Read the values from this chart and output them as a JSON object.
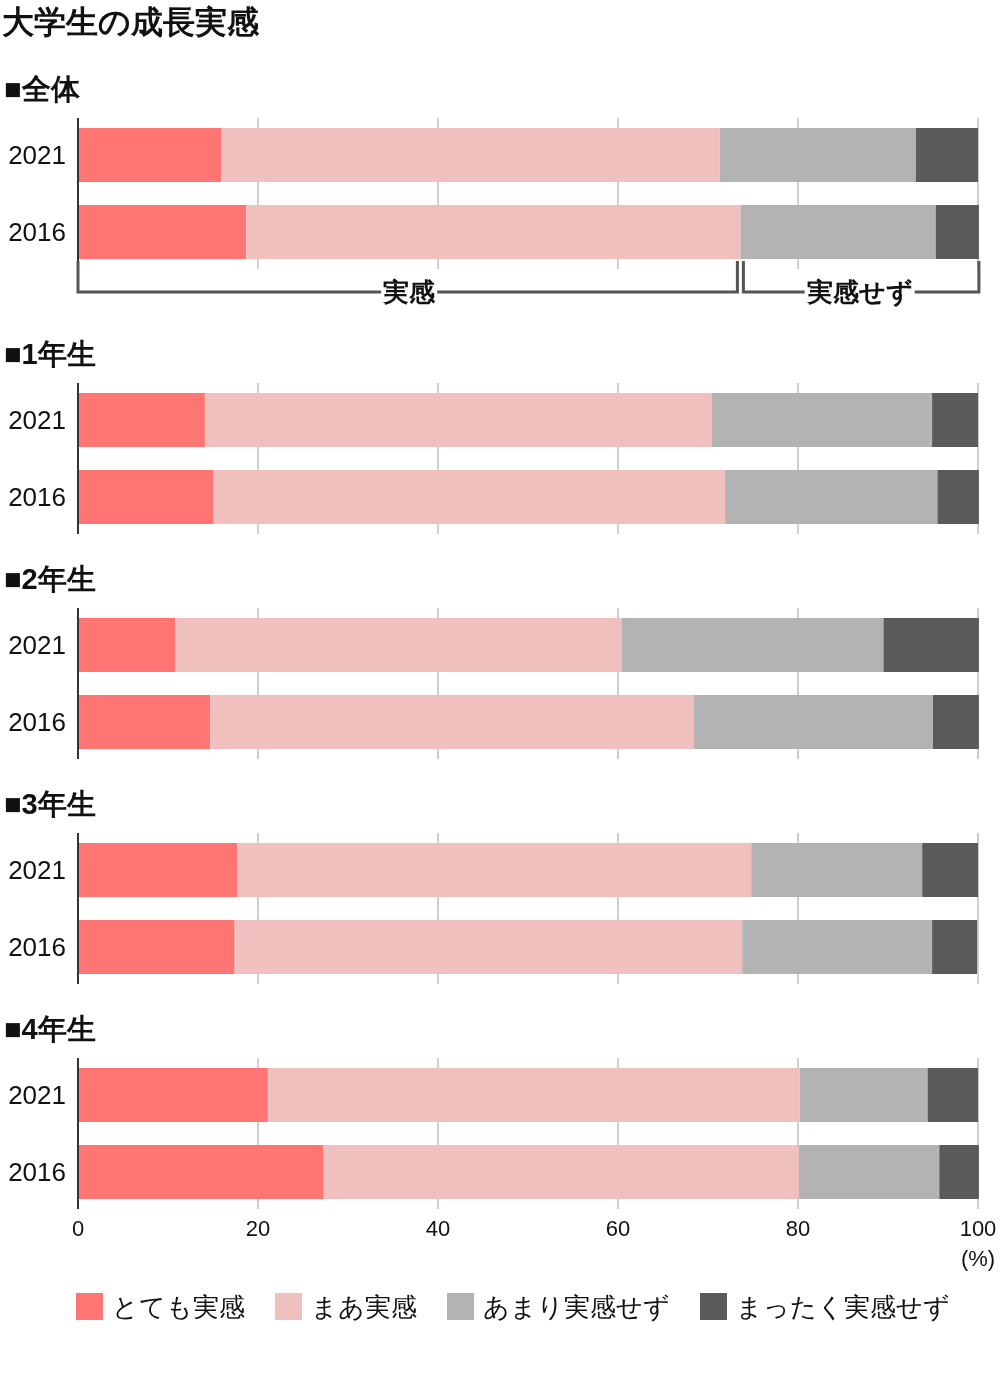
{
  "chart_data": [
    {
      "type": "bar",
      "orientation": "horizontal",
      "stacked": true,
      "title": "大学生の成長実感",
      "subtitle": "■全体",
      "categories": [
        "2021",
        "2016"
      ],
      "xlim": [
        0,
        100
      ],
      "xticks": [
        0,
        20,
        40,
        60,
        80,
        100
      ],
      "grid": "x",
      "tick_labels": "y",
      "annotations": [
        "実感",
        "実感せず"
      ],
      "series": [
        {
          "color": "#ff7573",
          "values": [
            15.9,
            18.7
          ]
        },
        {
          "color": "#f0c0be",
          "values": [
            55.4,
            54.9
          ]
        },
        {
          "color": "#b3b3b3",
          "values": [
            21.8,
            21.7
          ]
        },
        {
          "color": "#5a5a5a",
          "values": [
            6.9,
            4.8
          ]
        }
      ]
    },
    {
      "type": "bar",
      "orientation": "horizontal",
      "stacked": true,
      "subtitle": "■1年生",
      "categories": [
        "2021",
        "2016"
      ],
      "xlim": [
        0,
        100
      ],
      "xticks": [
        0,
        20,
        40,
        60,
        80,
        100
      ],
      "grid": "x",
      "tick_labels": "y",
      "series": [
        {
          "color": "#ff7573",
          "values": [
            14.1,
            15.0
          ]
        },
        {
          "color": "#f0c0be",
          "values": [
            56.3,
            56.9
          ]
        },
        {
          "color": "#b3b3b3",
          "values": [
            24.5,
            23.6
          ]
        },
        {
          "color": "#5a5a5a",
          "values": [
            5.1,
            4.6
          ]
        }
      ]
    },
    {
      "type": "bar",
      "orientation": "horizontal",
      "stacked": true,
      "subtitle": "■2年生",
      "categories": [
        "2021",
        "2016"
      ],
      "xlim": [
        0,
        100
      ],
      "xticks": [
        0,
        20,
        40,
        60,
        80,
        100
      ],
      "grid": "x",
      "tick_labels": "y",
      "series": [
        {
          "color": "#ff7573",
          "values": [
            10.8,
            14.7
          ]
        },
        {
          "color": "#f0c0be",
          "values": [
            49.6,
            53.7
          ]
        },
        {
          "color": "#b3b3b3",
          "values": [
            29.1,
            26.6
          ]
        },
        {
          "color": "#5a5a5a",
          "values": [
            10.6,
            5.1
          ]
        }
      ]
    },
    {
      "type": "bar",
      "orientation": "horizontal",
      "stacked": true,
      "subtitle": "■3年生",
      "categories": [
        "2021",
        "2016"
      ],
      "xlim": [
        0,
        100
      ],
      "xticks": [
        0,
        20,
        40,
        60,
        80,
        100
      ],
      "grid": "x",
      "tick_labels": "y",
      "series": [
        {
          "color": "#ff7573",
          "values": [
            17.7,
            17.4
          ]
        },
        {
          "color": "#f0c0be",
          "values": [
            57.1,
            56.4
          ]
        },
        {
          "color": "#b3b3b3",
          "values": [
            19.0,
            21.1
          ]
        },
        {
          "color": "#5a5a5a",
          "values": [
            6.2,
            5.0
          ]
        }
      ]
    },
    {
      "type": "bar",
      "orientation": "horizontal",
      "stacked": true,
      "subtitle": "■4年生",
      "categories": [
        "2021",
        "2016"
      ],
      "xlim": [
        0,
        100
      ],
      "xticks": [
        0,
        20,
        40,
        60,
        80,
        100
      ],
      "grid": "x",
      "xlabel": "(%)",
      "legend": "bottom",
      "series": [
        {
          "name": "とても実感",
          "color": "#ff7573",
          "values": [
            21.1,
            27.3
          ]
        },
        {
          "name": "まあ実感",
          "color": "#f0c0be",
          "values": [
            59.1,
            52.8
          ]
        },
        {
          "name": "あまり実感せず",
          "color": "#b3b3b3",
          "values": [
            14.2,
            15.6
          ]
        },
        {
          "name": "まったく実感せず",
          "color": "#5a5a5a",
          "values": [
            5.6,
            4.4
          ]
        }
      ]
    }
  ]
}
